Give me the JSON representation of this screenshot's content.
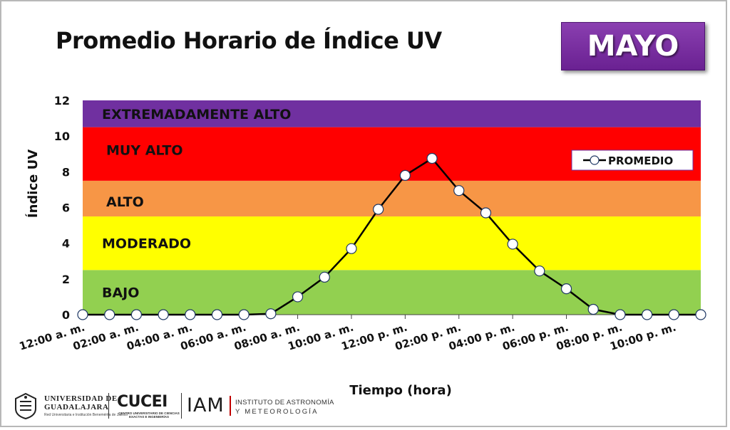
{
  "header": {
    "title": "Promedio Horario de Índice UV",
    "month": "MAYO"
  },
  "chart_data": {
    "type": "line",
    "title": "Promedio Horario de Índice UV",
    "xlabel": "Tiempo (hora)",
    "ylabel": "Índice UV",
    "ylim": [
      0,
      12
    ],
    "yticks": [
      "0",
      "2",
      "4",
      "6",
      "8",
      "10",
      "12"
    ],
    "x_tick_labels": [
      "12:00 a. m.",
      "02:00 a. m.",
      "04:00 a. m.",
      "06:00 a. m.",
      "08:00 a. m.",
      "10:00 a. m.",
      "12:00 p. m.",
      "02:00 p. m.",
      "04:00 p. m.",
      "06:00 p. m.",
      "08:00 p. m.",
      "10:00 p. m."
    ],
    "x": [
      "12:00 a. m.",
      "01:00 a. m.",
      "02:00 a. m.",
      "03:00 a. m.",
      "04:00 a. m.",
      "05:00 a. m.",
      "06:00 a. m.",
      "07:00 a. m.",
      "08:00 a. m.",
      "09:00 a. m.",
      "10:00 a. m.",
      "11:00 a. m.",
      "12:00 p. m.",
      "01:00 p. m.",
      "02:00 p. m.",
      "03:00 p. m.",
      "04:00 p. m.",
      "05:00 p. m.",
      "06:00 p. m.",
      "07:00 p. m.",
      "08:00 p. m.",
      "09:00 p. m.",
      "10:00 p. m.",
      "11:00 p. m."
    ],
    "series": [
      {
        "name": "PROMEDIO",
        "values": [
          0,
          0,
          0,
          0,
          0,
          0,
          0,
          0.05,
          1.0,
          2.1,
          3.7,
          5.9,
          7.8,
          8.75,
          6.95,
          5.7,
          3.95,
          2.45,
          1.45,
          0.3,
          0,
          0,
          0,
          0
        ]
      }
    ],
    "bands": [
      {
        "label": "BAJO",
        "from": 0,
        "to": 2.5,
        "color": "#92d050"
      },
      {
        "label": "MODERADO",
        "from": 2.5,
        "to": 5.5,
        "color": "#ffff00"
      },
      {
        "label": "ALTO",
        "from": 5.5,
        "to": 7.5,
        "color": "#f79646"
      },
      {
        "label": "MUY ALTO",
        "from": 7.5,
        "to": 10.5,
        "color": "#ff0000"
      },
      {
        "label": "EXTREMADAMENTE ALTO",
        "from": 10.5,
        "to": 12,
        "color": "#7030a0"
      }
    ],
    "legend_position": "top-right",
    "grid": false
  },
  "footer": {
    "ug_line1": "UNIVERSIDAD DE",
    "ug_line2": "GUADALAJARA",
    "ug_line3": "Red Universitaria e Institución Benemérita de Jalisco",
    "cucei": "CUCEI",
    "cucei_sub": "CENTRO UNIVERSITARIO DE CIENCIAS EXACTAS E INGENIERÍAS",
    "iam": "IAM",
    "iam_line1": "INSTITUTO DE ASTRONOMÍA",
    "iam_line2": "Y METEOROLOGÍA"
  }
}
